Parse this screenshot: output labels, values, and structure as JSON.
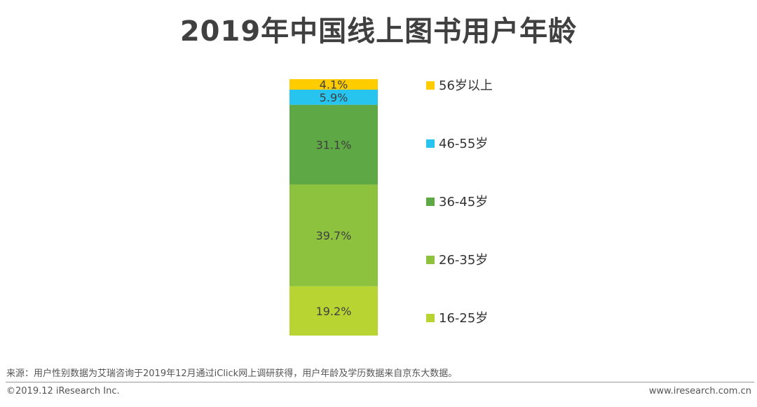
{
  "title": "2019年中国线上图书用户年龄",
  "chart_data": {
    "type": "bar",
    "stacked": true,
    "unit": "%",
    "series": [
      {
        "name": "16-25岁",
        "value": 19.2,
        "label": "19.2%",
        "color": "#b7d433"
      },
      {
        "name": "26-35岁",
        "value": 39.7,
        "label": "39.7%",
        "color": "#8dc23f"
      },
      {
        "name": "36-45岁",
        "value": 31.1,
        "label": "31.1%",
        "color": "#5ea845"
      },
      {
        "name": "46-55岁",
        "value": 5.9,
        "label": "5.9%",
        "color": "#27c4ef"
      },
      {
        "name": "56岁以上",
        "value": 4.1,
        "label": "4.1%",
        "color": "#ffcc00"
      }
    ],
    "legend_order": [
      "56岁以上",
      "46-55岁",
      "36-45岁",
      "26-35岁",
      "16-25岁"
    ],
    "legend_position": "right"
  },
  "footer": {
    "source": "来源：用户性别数据为艾瑞咨询于2019年12月通过iClick网上调研获得，用户年龄及学历数据来自京东大数据。",
    "copyright": "©2019.12 iResearch Inc.",
    "website": "www.iresearch.com.cn"
  }
}
